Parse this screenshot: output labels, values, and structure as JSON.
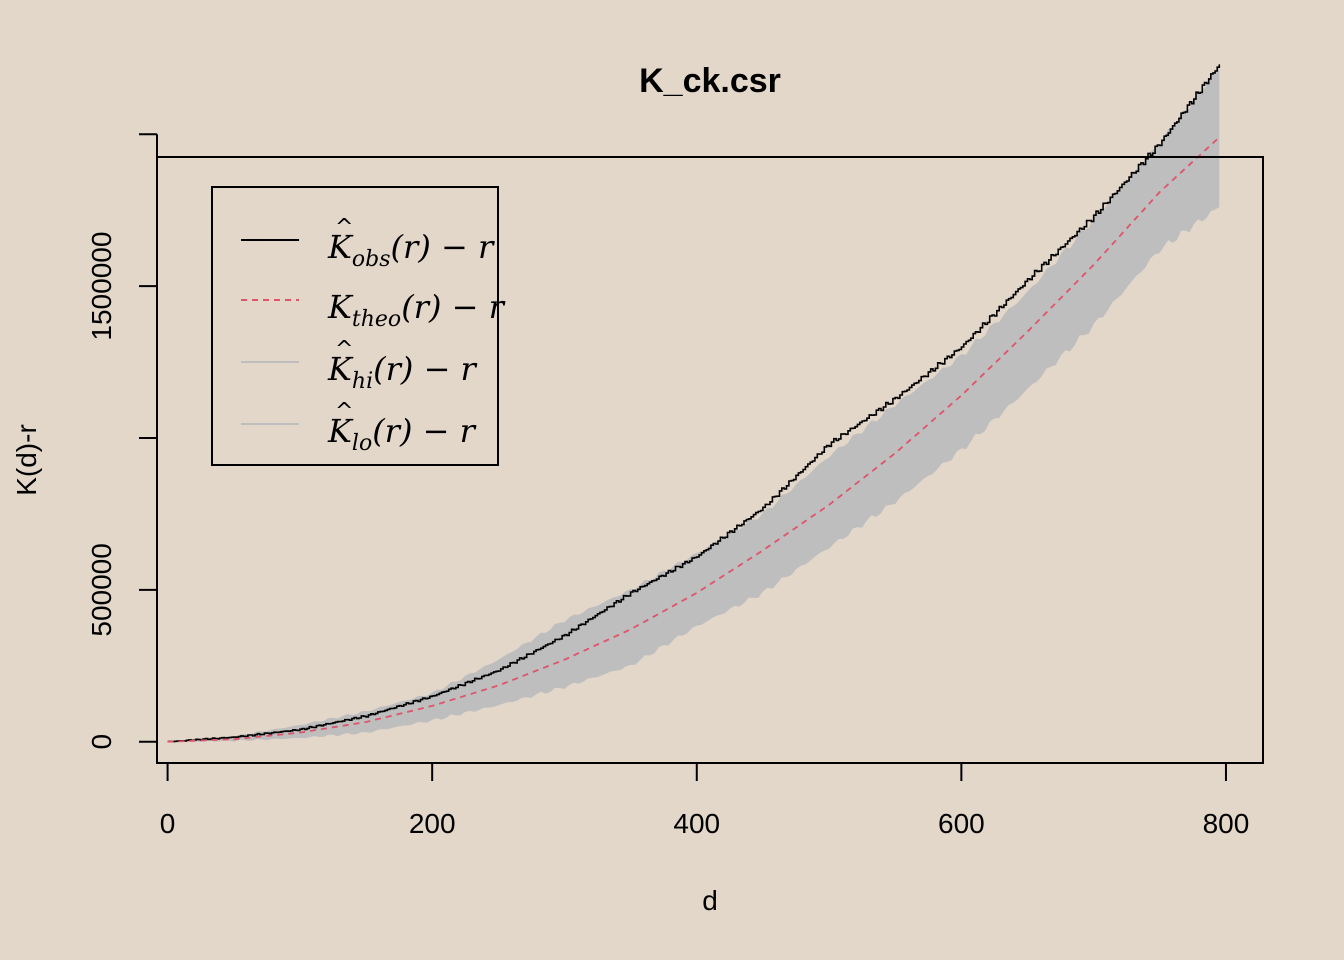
{
  "chart_data": {
    "type": "line",
    "title": "K_ck.csr",
    "xlabel": "d",
    "ylabel": "K(d)-r",
    "xlim": [
      -8,
      828
    ],
    "ylim": [
      -70000,
      1925000
    ],
    "x_ticks": [
      0,
      200,
      400,
      600,
      800
    ],
    "x_tick_labels": [
      "0",
      "200",
      "400",
      "600",
      "800"
    ],
    "y_ticks": [
      0,
      500000,
      1000000,
      1500000,
      2000000
    ],
    "y_tick_labels": [
      "0",
      "500000",
      "",
      "1500000",
      ""
    ],
    "grid": false,
    "legend_position": "top-left",
    "x": [
      0,
      50,
      100,
      150,
      200,
      250,
      300,
      350,
      400,
      450,
      500,
      550,
      600,
      650,
      700,
      750,
      795
    ],
    "series": [
      {
        "name": "K_obs(r) - r",
        "legend": {
          "main": "K",
          "hat": true,
          "sub": "obs",
          "tail": "(r) − r"
        },
        "style": "solid",
        "color": "#000000",
        "values": [
          0,
          15000,
          40000,
          85000,
          150000,
          235000,
          350000,
          490000,
          610000,
          770000,
          980000,
          1130000,
          1300000,
          1520000,
          1730000,
          1970000,
          2230000
        ]
      },
      {
        "name": "K_theo(r) - r",
        "legend": {
          "main": "K",
          "hat": false,
          "sub": "theo",
          "tail": "(r) − r"
        },
        "style": "dashed",
        "color": "#df536b",
        "values": [
          0,
          8000,
          30000,
          65000,
          118000,
          185000,
          270000,
          370000,
          490000,
          630000,
          780000,
          950000,
          1140000,
          1350000,
          1570000,
          1810000,
          1990000
        ]
      },
      {
        "name": "K_hi(r) - r",
        "legend": {
          "main": "K",
          "hat": true,
          "sub": "hi",
          "tail": "(r) − r"
        },
        "style": "band-upper",
        "color": "#bebebe",
        "values": [
          0,
          18000,
          55000,
          100000,
          160000,
          270000,
          400000,
          500000,
          620000,
          750000,
          940000,
          1110000,
          1270000,
          1480000,
          1720000,
          1970000,
          2220000
        ]
      },
      {
        "name": "K_lo(r) - r",
        "legend": {
          "main": "K",
          "hat": true,
          "sub": "lo",
          "tail": "(r) − r"
        },
        "style": "band-lower",
        "color": "#bebebe",
        "values": [
          0,
          3000,
          12000,
          30000,
          70000,
          120000,
          180000,
          250000,
          380000,
          490000,
          640000,
          790000,
          960000,
          1160000,
          1370000,
          1620000,
          1760000
        ]
      }
    ]
  }
}
